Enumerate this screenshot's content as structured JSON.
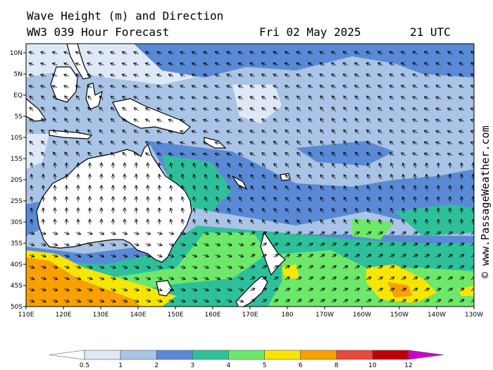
{
  "header": {
    "title_line1": "Wave Height (m) and Direction",
    "title_line2": "WW3 039 Hour Forecast",
    "date": "Fri 02 May 2025",
    "time": "21 UTC"
  },
  "credit": "© www.PassageWeather.com",
  "axes": {
    "lat_labels": [
      "10N",
      "5N",
      "EQ",
      "5S",
      "10S",
      "15S",
      "20S",
      "25S",
      "30S",
      "35S",
      "40S",
      "45S",
      "50S"
    ],
    "lon_labels": [
      "110E",
      "120E",
      "130E",
      "140E",
      "150E",
      "160E",
      "170E",
      "180",
      "170W",
      "160W",
      "150W",
      "140W",
      "130W"
    ]
  },
  "legend": {
    "ticks": [
      "0.5",
      "1",
      "2",
      "3",
      "4",
      "5",
      "6",
      "8",
      "10",
      "12"
    ],
    "colors": [
      "#dfe8f6",
      "#a9c4e6",
      "#5a8ad6",
      "#2ec09a",
      "#6ee86a",
      "#f7e600",
      "#f7a000",
      "#e84a3a",
      "#c00000",
      "#d000d0"
    ]
  },
  "colors": {
    "land": "#ffffff",
    "coast": "#000000",
    "sea_calm": "#a9c4e6",
    "sea_moderate": "#5a8ad6"
  }
}
